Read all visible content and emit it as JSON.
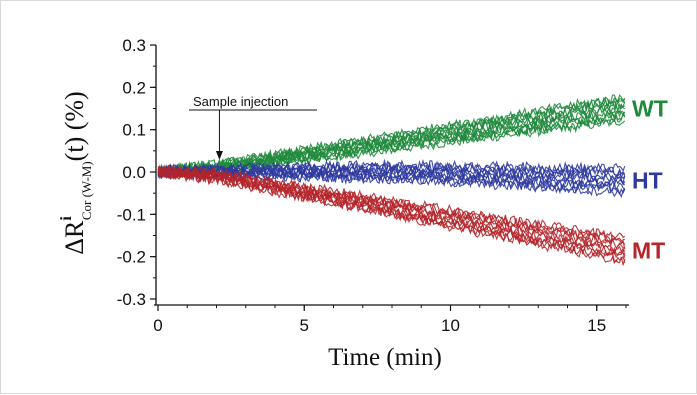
{
  "chart_data": {
    "type": "line",
    "title": "",
    "xlabel": "Time (min)",
    "ylabel": {
      "delta": "Δ",
      "symbol": "R",
      "superscript": "i",
      "subscript": "Cor (W-M)",
      "suffix": "(t) (%)"
    },
    "xlim": [
      0,
      16
    ],
    "ylim": [
      -0.3,
      0.3
    ],
    "x_ticks": [
      "0",
      "5",
      "10",
      "15"
    ],
    "y_ticks": [
      "0.3",
      "0.2",
      "0.1",
      "0.0",
      "-0.1",
      "-0.2",
      "-0.3"
    ],
    "grid": false,
    "annotation": {
      "text": "Sample injection",
      "x": 2.1
    },
    "series": [
      {
        "name": "WT",
        "color": "#1f8a3c",
        "x": [
          0,
          2,
          4,
          6,
          8,
          10,
          12,
          14,
          16
        ],
        "values": [
          0.0,
          0.01,
          0.03,
          0.05,
          0.07,
          0.09,
          0.11,
          0.13,
          0.15
        ],
        "trace_count": 11
      },
      {
        "name": "HT",
        "color": "#2e3aa0",
        "x": [
          0,
          2,
          4,
          6,
          8,
          10,
          12,
          14,
          16
        ],
        "values": [
          0.0,
          0.0,
          0.0,
          0.0,
          0.0,
          -0.005,
          -0.01,
          -0.015,
          -0.02
        ],
        "trace_count": 10
      },
      {
        "name": "MT",
        "color": "#b5252a",
        "x": [
          0,
          2,
          4,
          6,
          8,
          10,
          12,
          14,
          16
        ],
        "values": [
          0.0,
          -0.01,
          -0.035,
          -0.06,
          -0.085,
          -0.11,
          -0.135,
          -0.16,
          -0.185
        ],
        "trace_count": 10
      }
    ]
  }
}
